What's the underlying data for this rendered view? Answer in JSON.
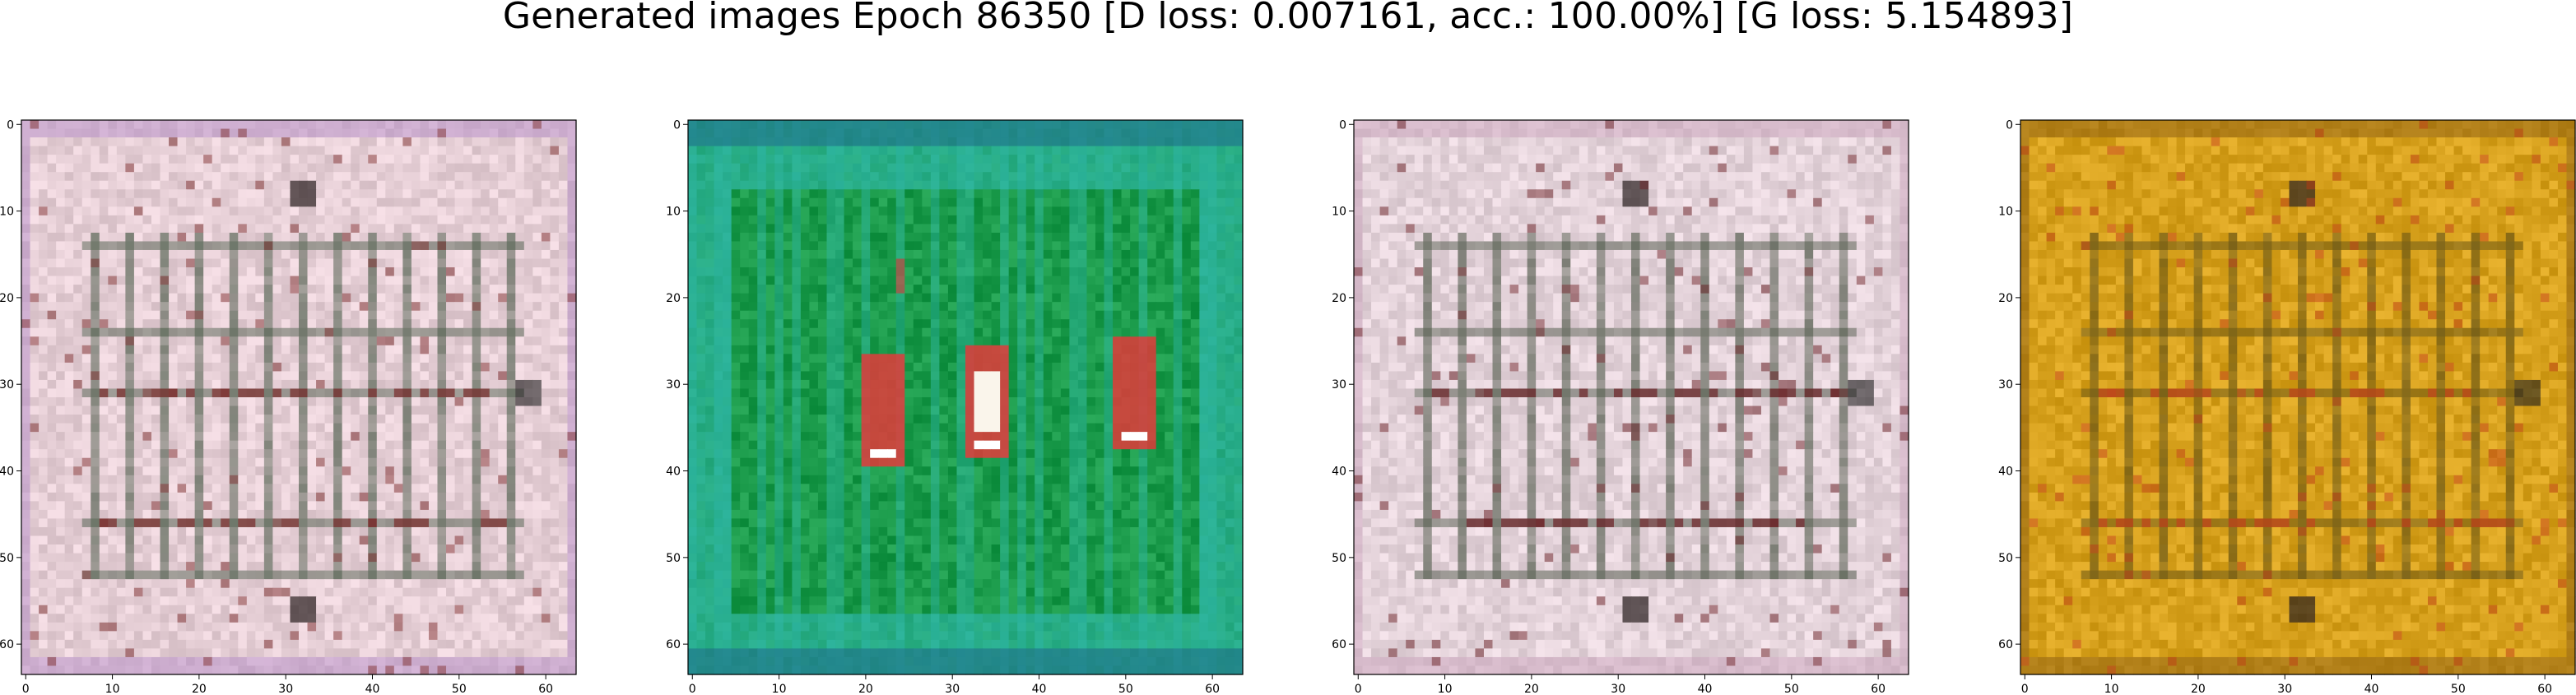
{
  "title": "Generated images Epoch 86350 [D loss: 0.007161, acc.: 100.00%] [G loss: 5.154893]",
  "chart_data": [
    {
      "type": "heatmap",
      "description": "generated sample 1 — pale pink grid pattern",
      "xticks": [
        0,
        10,
        20,
        30,
        40,
        50,
        60
      ],
      "yticks": [
        0,
        10,
        20,
        30,
        40,
        50,
        60
      ],
      "xlim": [
        -0.5,
        63.5
      ],
      "ylim": [
        63.5,
        -0.5
      ],
      "palette": {
        "base": "#e6cfd6",
        "line": "#5d6a5a",
        "accent": "#7a2a2a",
        "edge": "#b48cc8"
      }
    },
    {
      "type": "heatmap",
      "description": "generated sample 2 — green field with red/white figures",
      "xticks": [
        0,
        10,
        20,
        30,
        40,
        50,
        60
      ],
      "yticks": [
        0,
        10,
        20,
        30,
        40,
        50,
        60
      ],
      "xlim": [
        -0.5,
        63.5
      ],
      "ylim": [
        63.5,
        -0.5
      ],
      "palette": {
        "base": "#1a9a4a",
        "line": "#2fb7a8",
        "accent": "#e23a3a",
        "edge": "#1f6f8a"
      }
    },
    {
      "type": "heatmap",
      "description": "generated sample 3 — pale pink grid pattern",
      "xticks": [
        0,
        10,
        20,
        30,
        40,
        50,
        60
      ],
      "yticks": [
        0,
        10,
        20,
        30,
        40,
        50,
        60
      ],
      "xlim": [
        -0.5,
        63.5
      ],
      "ylim": [
        63.5,
        -0.5
      ],
      "palette": {
        "base": "#e4d3da",
        "line": "#5e6658",
        "accent": "#6a1f24",
        "edge": "#c9a2bb"
      }
    },
    {
      "type": "heatmap",
      "description": "generated sample 4 — golden/ochre grid pattern",
      "xticks": [
        0,
        10,
        20,
        30,
        40,
        50,
        60
      ],
      "yticks": [
        0,
        10,
        20,
        30,
        40,
        50,
        60
      ],
      "xlim": [
        -0.5,
        63.5
      ],
      "ylim": [
        63.5,
        -0.5
      ],
      "palette": {
        "base": "#d8a21e",
        "line": "#6f5a17",
        "accent": "#c2401a",
        "edge": "#8a5c12"
      }
    }
  ]
}
